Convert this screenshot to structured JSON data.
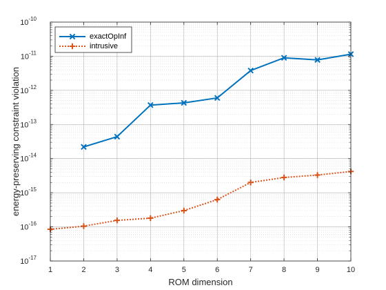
{
  "chart_data": {
    "type": "line",
    "title": "",
    "xlabel": "ROM dimension",
    "ylabel": "energy-preserving constraint violation",
    "xlim": [
      1,
      10
    ],
    "ylim": [
      1e-17,
      1e-10
    ],
    "yscale": "log",
    "grid": true,
    "legend_position": "top-left",
    "x_ticks": [
      "1",
      "2",
      "3",
      "4",
      "5",
      "6",
      "7",
      "8",
      "9",
      "10"
    ],
    "y_ticks": [
      {
        "value": 1e-17,
        "base": "10",
        "exp": "-17"
      },
      {
        "value": 1e-16,
        "base": "10",
        "exp": "-16"
      },
      {
        "value": 1e-15,
        "base": "10",
        "exp": "-15"
      },
      {
        "value": 1e-14,
        "base": "10",
        "exp": "-14"
      },
      {
        "value": 1e-13,
        "base": "10",
        "exp": "-13"
      },
      {
        "value": 1e-12,
        "base": "10",
        "exp": "-12"
      },
      {
        "value": 1e-11,
        "base": "10",
        "exp": "-11"
      },
      {
        "value": 1e-10,
        "base": "10",
        "exp": "-10"
      }
    ],
    "series": [
      {
        "name": "exactOpInf",
        "color": "#0072BD",
        "line_style": "solid",
        "marker": "x",
        "x": [
          2,
          3,
          4,
          5,
          6,
          7,
          8,
          9,
          10
        ],
        "values": [
          2.2e-14,
          4.4e-14,
          3.7e-13,
          4.3e-13,
          6e-13,
          3.8e-12,
          9e-12,
          7.8e-12,
          1.15e-11
        ]
      },
      {
        "name": "intrusive",
        "color": "#D95319",
        "line_style": "dotted",
        "marker": "+",
        "x": [
          1,
          2,
          3,
          4,
          5,
          6,
          7,
          8,
          9,
          10
        ],
        "values": [
          8.5e-17,
          1.05e-16,
          1.55e-16,
          1.8e-16,
          3e-16,
          6.3e-16,
          2e-15,
          2.8e-15,
          3.3e-15,
          4.2e-15
        ]
      }
    ]
  }
}
